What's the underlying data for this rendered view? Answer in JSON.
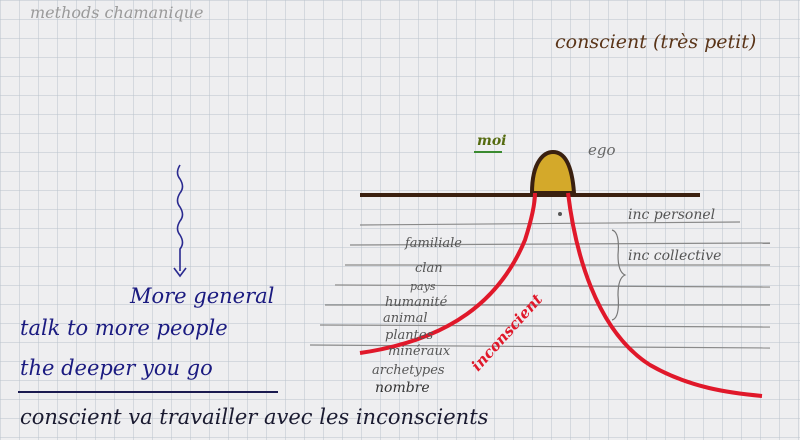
{
  "header": {
    "title": "methods chamanique",
    "subtitle": "conscient (très petit)"
  },
  "diagram": {
    "moi": "moi",
    "ego": "ego",
    "inc_personel": "inc personel",
    "inc_collective": "inc collective",
    "layers": [
      "familiale",
      "clan",
      "pays",
      "humanité",
      "animal",
      "plantes",
      "minéraux",
      "archetypes",
      "nombre"
    ],
    "inconscient": "inconscient"
  },
  "notes": [
    "More general",
    "talk to more people",
    "the deeper you go",
    "conscient va travailler avec les inconscients"
  ]
}
